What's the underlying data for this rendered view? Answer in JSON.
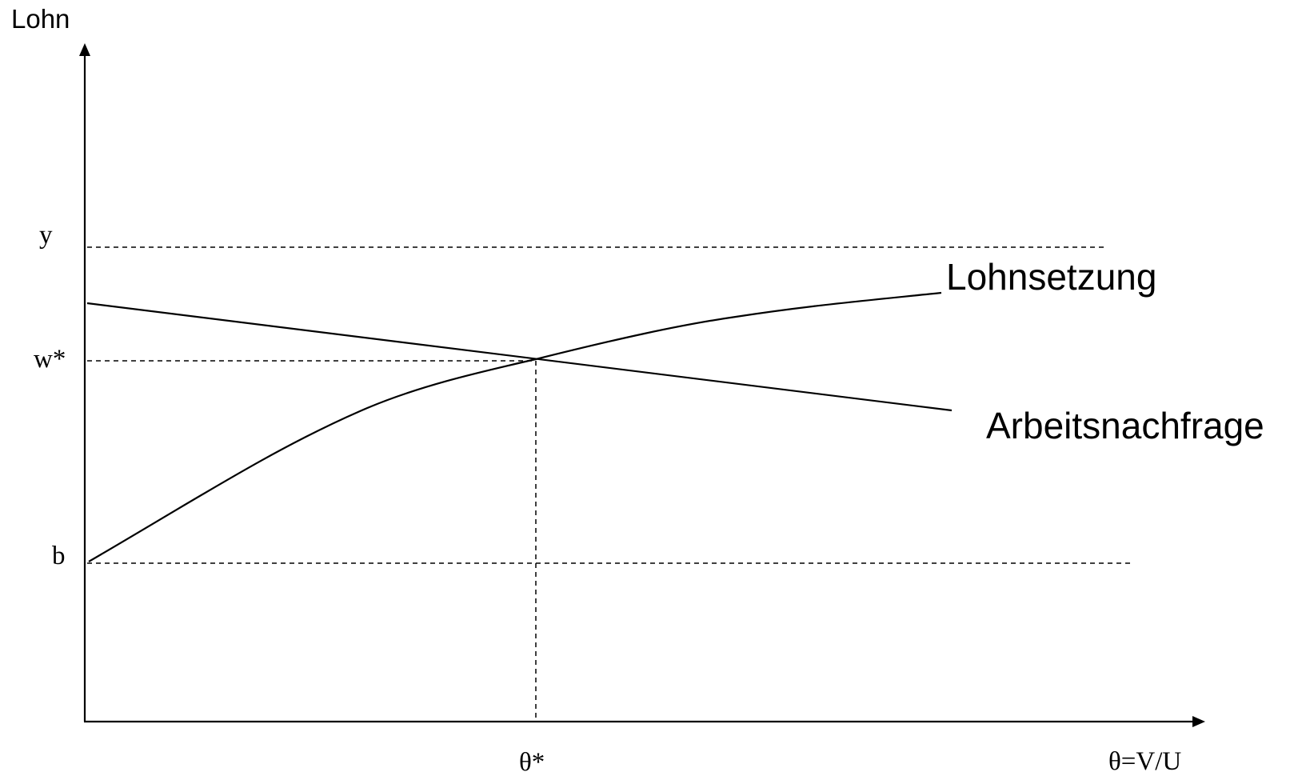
{
  "axes": {
    "y_label": "Lohn",
    "x_label": "θ=V/U"
  },
  "levels": {
    "y": "y",
    "w_star": "w*",
    "b": "b",
    "theta_star": "θ*"
  },
  "curves": {
    "wage_setting": "Lohnsetzung",
    "labor_demand": "Arbeitsnachfrage"
  }
}
